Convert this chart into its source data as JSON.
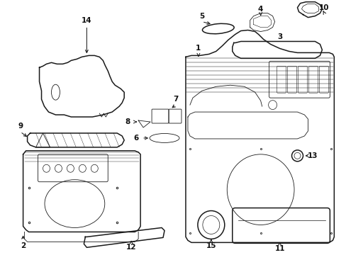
{
  "bg_color": "#ffffff",
  "line_color": "#1a1a1a",
  "text_color": "#111111",
  "lw_main": 1.1,
  "lw_thin": 0.6,
  "lw_xtra": 0.35,
  "label_fontsize": 7.5
}
